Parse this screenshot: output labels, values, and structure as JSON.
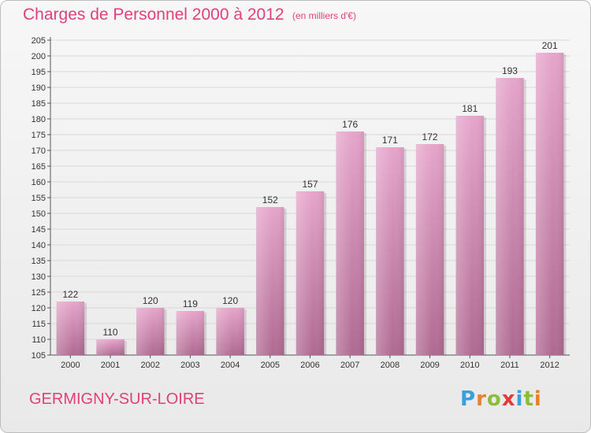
{
  "header": {
    "title": "Charges de Personnel 2000 à 2012",
    "subtitle": "(en milliers d'€)"
  },
  "footer": {
    "commune": "GERMIGNY-SUR-LOIRE",
    "logo_letters": [
      "P",
      "r",
      "o",
      "x",
      "i",
      "t",
      "i"
    ],
    "logo_colors": [
      "#3aa0dc",
      "#e8812e",
      "#8cbd3a",
      "#e23a3a",
      "#3aa0dc",
      "#8cbd3a",
      "#e8812e"
    ]
  },
  "colors": {
    "bar_top": "#e6a5cb",
    "bar_bottom": "#b06a92",
    "text_accent": "#e0407a",
    "grid": "#d8d8d8"
  },
  "chart_data": {
    "type": "bar",
    "categories": [
      "2000",
      "2001",
      "2002",
      "2003",
      "2004",
      "2005",
      "2006",
      "2007",
      "2008",
      "2009",
      "2010",
      "2011",
      "2012"
    ],
    "values": [
      122,
      110,
      120,
      119,
      120,
      152,
      157,
      176,
      171,
      172,
      181,
      193,
      201
    ],
    "title": "Charges de Personnel 2000 à 2012",
    "xlabel": "",
    "ylabel": "",
    "ylim": [
      105,
      205
    ],
    "yticks": [
      105,
      110,
      115,
      120,
      125,
      130,
      135,
      140,
      145,
      150,
      155,
      160,
      165,
      170,
      175,
      180,
      185,
      190,
      195,
      200,
      205
    ],
    "grid": true,
    "data_labels": true
  }
}
